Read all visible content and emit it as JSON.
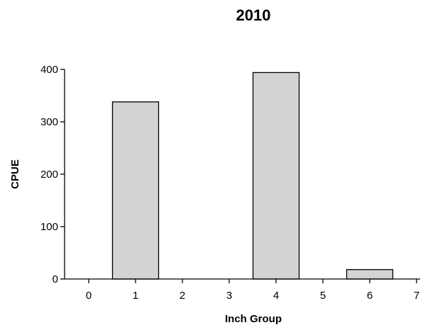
{
  "chart_data": {
    "type": "bar",
    "title": "2010",
    "xlabel": "Inch Group",
    "ylabel": "CPUE",
    "categories": [
      "0",
      "1",
      "2",
      "3",
      "4",
      "5",
      "6",
      "7"
    ],
    "values": [
      0,
      338,
      0,
      0,
      394,
      0,
      18,
      0
    ],
    "ylim": [
      0,
      400
    ],
    "yticks": [
      0,
      100,
      200,
      300,
      400
    ],
    "grid": false,
    "bar_color": "#d3d3d3",
    "edge_color": "#000000"
  }
}
